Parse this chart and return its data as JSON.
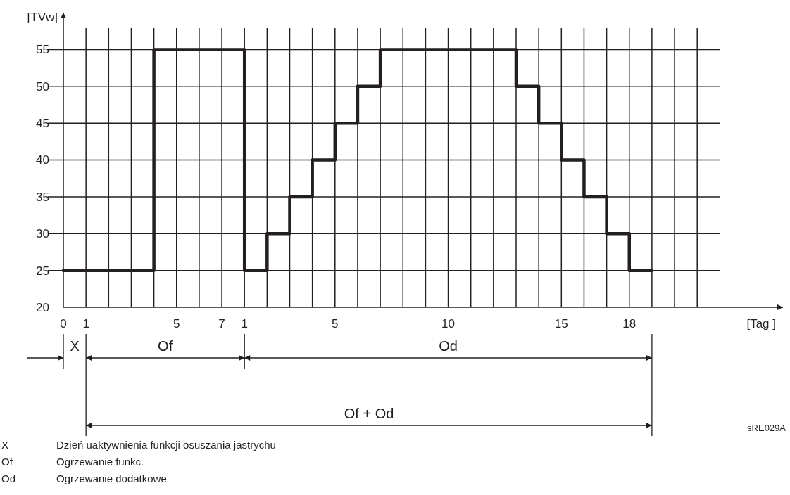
{
  "chart_data": {
    "type": "step",
    "ylabel": "[TVw]",
    "xlabel": "[Tag ]",
    "categories": [
      "0",
      "1",
      null,
      null,
      null,
      "5",
      null,
      "7",
      "1",
      null,
      null,
      null,
      "5",
      null,
      null,
      null,
      null,
      "10",
      null,
      null,
      null,
      null,
      "15",
      null,
      null,
      "18",
      null,
      null,
      null
    ],
    "series": [
      {
        "color": "#231f20",
        "values": [
          25,
          25,
          25,
          25,
          55,
          55,
          55,
          55,
          25,
          30,
          35,
          40,
          45,
          50,
          55,
          55,
          55,
          55,
          55,
          55,
          50,
          45,
          40,
          35,
          30,
          25,
          25,
          null,
          null
        ]
      }
    ],
    "ylim": [
      20,
      60
    ],
    "yticks": [
      20,
      25,
      30,
      35,
      40,
      45,
      50,
      55
    ],
    "grid": true,
    "annotations": [
      "X",
      "Of",
      "Od",
      "Of + Od",
      "sRE029A",
      "X",
      "Dzień uaktywnienia funkcji osuszania jastrychu",
      "Of",
      "Ogrzewanie funkc.",
      "Od",
      "Ogrzewanie dodatkowe"
    ]
  }
}
